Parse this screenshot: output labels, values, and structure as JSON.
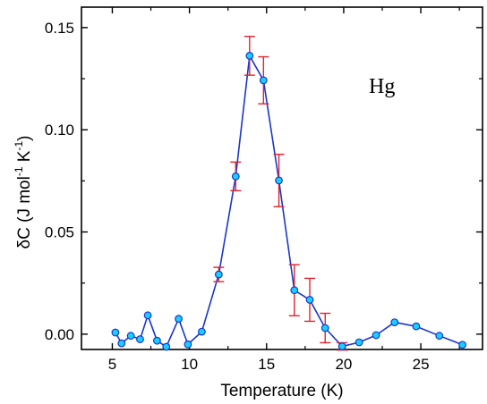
{
  "chart_data": {
    "type": "scatter",
    "title": "",
    "xlabel": "Temperature (K)",
    "ylabel": "δC (J mol⁻¹ K⁻¹)",
    "ylabel_parts": {
      "prefix": "δC (J mol",
      "sup1": "-1",
      "middle": " K",
      "sup2": "-1",
      "suffix": ")"
    },
    "annotation": "Hg",
    "xlim": [
      3,
      29
    ],
    "ylim": [
      -0.0075,
      0.16
    ],
    "xticks": [
      5,
      10,
      15,
      20,
      25
    ],
    "xtick_labels": [
      "5",
      "10",
      "15",
      "20",
      "25"
    ],
    "xminor_ticks": [
      7.5,
      12.5,
      17.5,
      22.5,
      27.5
    ],
    "yticks": [
      0.0,
      0.05,
      0.1,
      0.15
    ],
    "ytick_labels": [
      "0.00",
      "0.05",
      "0.10",
      "0.15"
    ],
    "yminor_ticks": [
      0.025,
      0.075,
      0.125
    ],
    "grid": false,
    "series": [
      {
        "line_color": "#1a36c8",
        "marker_fill": "#17d0ff",
        "marker_edge": "#1a36c8",
        "x": [
          5.2,
          5.6,
          6.2,
          6.8,
          7.3,
          7.9,
          8.5,
          9.3,
          9.9,
          10.8,
          11.9,
          13.0,
          13.9,
          14.8,
          15.8,
          16.8,
          17.8,
          18.8,
          19.9,
          21.0,
          22.1,
          23.3,
          24.7,
          26.2,
          27.7
        ],
        "y": [
          0.0008,
          -0.0045,
          -0.0008,
          -0.0025,
          0.0092,
          -0.0032,
          -0.0062,
          0.0075,
          -0.005,
          0.0012,
          0.0292,
          0.0772,
          0.1362,
          0.1242,
          0.0752,
          0.0215,
          0.0168,
          0.003,
          -0.006,
          -0.004,
          -0.0005,
          0.0058,
          0.0038,
          -0.0008,
          -0.0052
        ]
      }
    ],
    "error_bars": {
      "color": "#e0232d",
      "points": [
        {
          "x": 11.9,
          "y": 0.0292,
          "err": 0.0035
        },
        {
          "x": 13.0,
          "y": 0.0772,
          "err": 0.007
        },
        {
          "x": 13.9,
          "y": 0.1362,
          "err": 0.0095
        },
        {
          "x": 14.8,
          "y": 0.1242,
          "err": 0.0115
        },
        {
          "x": 15.8,
          "y": 0.0752,
          "err": 0.0128
        },
        {
          "x": 16.8,
          "y": 0.0215,
          "err": 0.0125
        },
        {
          "x": 17.8,
          "y": 0.0168,
          "err": 0.0105
        },
        {
          "x": 18.8,
          "y": 0.003,
          "err": 0.0072
        },
        {
          "x": 19.9,
          "y": -0.006,
          "err": 0.0018
        }
      ]
    }
  }
}
